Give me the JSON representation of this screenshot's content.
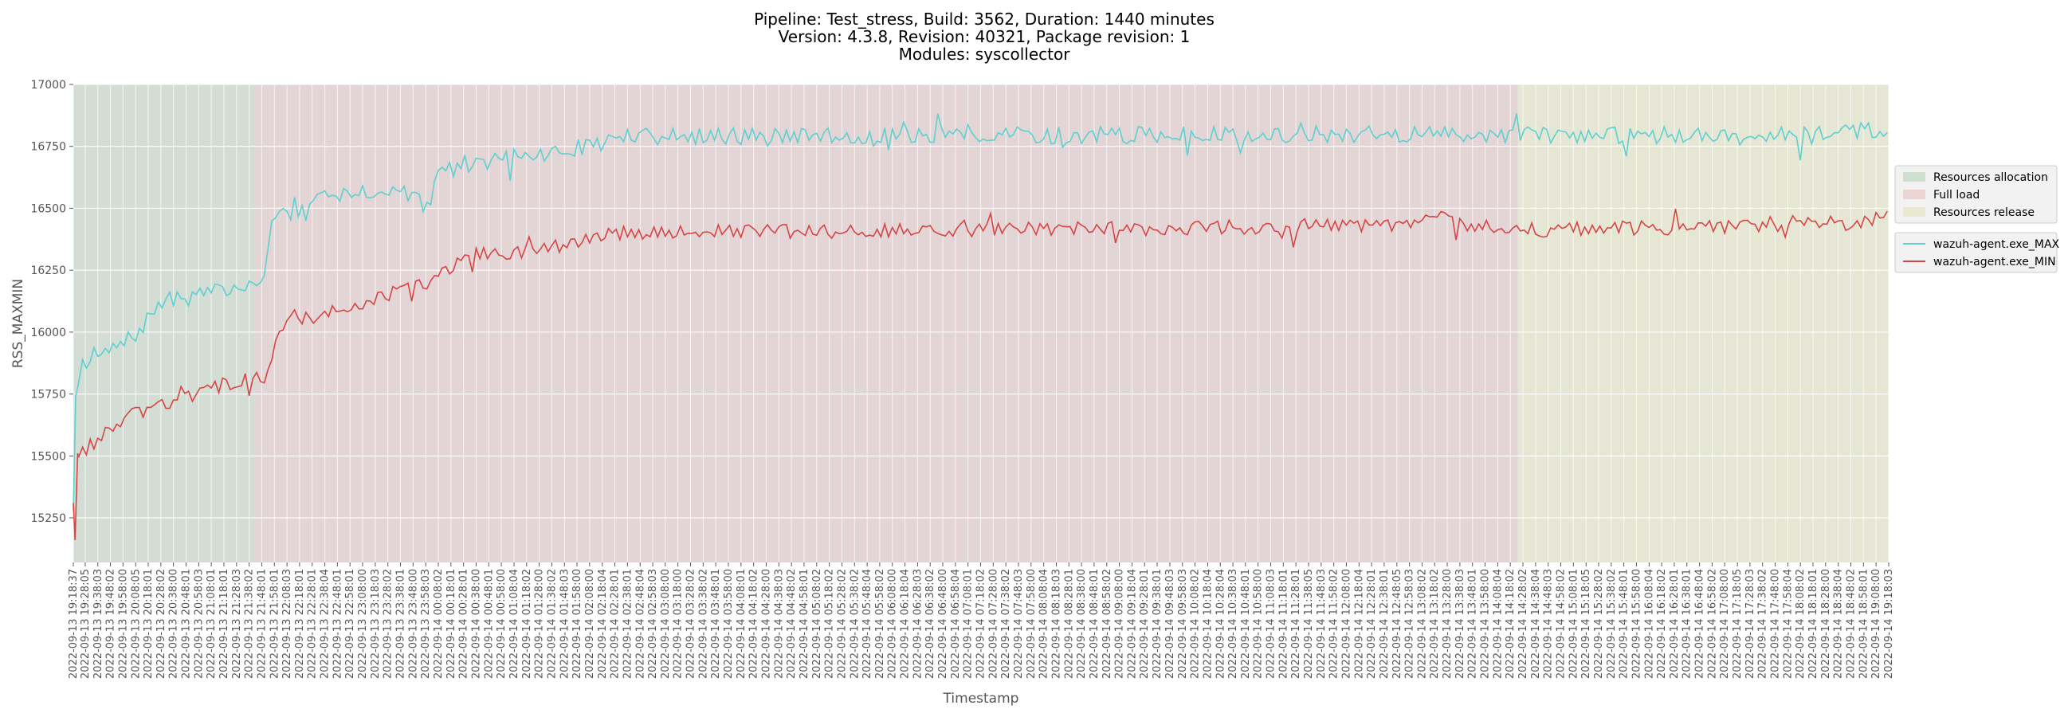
{
  "chart_data": {
    "type": "line",
    "title_lines": [
      "Pipeline: Test_stress, Build: 3562, Duration: 1440 minutes",
      "Version: 4.3.8, Revision: 40321, Package revision: 1",
      "Modules: syscollector"
    ],
    "xlabel": "Timestamp",
    "ylabel": "RSS_MAXMIN",
    "ylim": [
      15070,
      17000
    ],
    "yticks": [
      15250,
      15500,
      15750,
      16000,
      16250,
      16500,
      16750,
      17000
    ],
    "grid": true,
    "legend_position": "right",
    "x_start": "2022-09-13 19:18:37",
    "x_end": "2022-09-14 19:18:03",
    "x_ticks": [
      "2022-09-13 19:18:37",
      "2022-09-13 19:28:05",
      "2022-09-13 19:38:03",
      "2022-09-13 19:48:02",
      "2022-09-13 19:58:00",
      "2022-09-13 20:08:05",
      "2022-09-13 20:18:01",
      "2022-09-13 20:28:02",
      "2022-09-13 20:38:00",
      "2022-09-13 20:48:01",
      "2022-09-13 20:58:03",
      "2022-09-13 21:08:01",
      "2022-09-13 21:18:01",
      "2022-09-13 21:28:03",
      "2022-09-13 21:38:02",
      "2022-09-13 21:48:01",
      "2022-09-13 21:58:01",
      "2022-09-13 22:08:03",
      "2022-09-13 22:18:01",
      "2022-09-13 22:28:01",
      "2022-09-13 22:38:04",
      "2022-09-13 22:48:01",
      "2022-09-13 22:58:01",
      "2022-09-13 23:08:00",
      "2022-09-13 23:18:03",
      "2022-09-13 23:28:02",
      "2022-09-13 23:38:01",
      "2022-09-13 23:48:00",
      "2022-09-13 23:58:03",
      "2022-09-14 00:08:02",
      "2022-09-14 00:18:01",
      "2022-09-14 00:28:01",
      "2022-09-14 00:38:00",
      "2022-09-14 00:48:01",
      "2022-09-14 00:58:00",
      "2022-09-14 01:08:04",
      "2022-09-14 01:18:02",
      "2022-09-14 01:28:00",
      "2022-09-14 01:38:02",
      "2022-09-14 01:48:03",
      "2022-09-14 01:58:00",
      "2022-09-14 02:08:00",
      "2022-09-14 02:18:04",
      "2022-09-14 02:28:01",
      "2022-09-14 02:38:01",
      "2022-09-14 02:48:04",
      "2022-09-14 02:58:03",
      "2022-09-14 03:08:00",
      "2022-09-14 03:18:00",
      "2022-09-14 03:28:02",
      "2022-09-14 03:38:02",
      "2022-09-14 03:48:01",
      "2022-09-14 03:58:00",
      "2022-09-14 04:08:01",
      "2022-09-14 04:18:02",
      "2022-09-14 04:28:00",
      "2022-09-14 04:38:03",
      "2022-09-14 04:48:02",
      "2022-09-14 04:58:01",
      "2022-09-14 05:08:02",
      "2022-09-14 05:18:02",
      "2022-09-14 05:28:02",
      "2022-09-14 05:38:02",
      "2022-09-14 05:48:04",
      "2022-09-14 05:58:02",
      "2022-09-14 06:08:00",
      "2022-09-14 06:18:04",
      "2022-09-14 06:28:03",
      "2022-09-14 06:38:02",
      "2022-09-14 06:48:00",
      "2022-09-14 06:58:04",
      "2022-09-14 07:08:01",
      "2022-09-14 07:18:02",
      "2022-09-14 07:28:00",
      "2022-09-14 07:38:02",
      "2022-09-14 07:48:03",
      "2022-09-14 07:58:00",
      "2022-09-14 08:08:04",
      "2022-09-14 08:18:03",
      "2022-09-14 08:28:01",
      "2022-09-14 08:38:00",
      "2022-09-14 08:48:01",
      "2022-09-14 08:58:02",
      "2022-09-14 09:08:00",
      "2022-09-14 09:18:04",
      "2022-09-14 09:28:01",
      "2022-09-14 09:38:01",
      "2022-09-14 09:48:03",
      "2022-09-14 09:58:03",
      "2022-09-14 10:08:02",
      "2022-09-14 10:18:04",
      "2022-09-14 10:28:04",
      "2022-09-14 10:38:03",
      "2022-09-14 10:48:01",
      "2022-09-14 10:58:00",
      "2022-09-14 11:08:03",
      "2022-09-14 11:18:01",
      "2022-09-14 11:28:01",
      "2022-09-14 11:38:05",
      "2022-09-14 11:48:03",
      "2022-09-14 11:58:02",
      "2022-09-14 12:08:00",
      "2022-09-14 12:18:04",
      "2022-09-14 12:28:01",
      "2022-09-14 12:38:01",
      "2022-09-14 12:48:05",
      "2022-09-14 12:58:03",
      "2022-09-14 13:08:02",
      "2022-09-14 13:18:02",
      "2022-09-14 13:28:00",
      "2022-09-14 13:38:03",
      "2022-09-14 13:48:01",
      "2022-09-14 13:58:00",
      "2022-09-14 14:08:04",
      "2022-09-14 14:18:02",
      "2022-09-14 14:28:02",
      "2022-09-14 14:38:04",
      "2022-09-14 14:48:03",
      "2022-09-14 14:58:02",
      "2022-09-14 15:08:01",
      "2022-09-14 15:18:05",
      "2022-09-14 15:28:02",
      "2022-09-14 15:38:02",
      "2022-09-14 15:48:01",
      "2022-09-14 15:58:00",
      "2022-09-14 16:08:04",
      "2022-09-14 16:18:02",
      "2022-09-14 16:28:01",
      "2022-09-14 16:38:01",
      "2022-09-14 16:48:04",
      "2022-09-14 16:58:02",
      "2022-09-14 17:08:00",
      "2022-09-14 17:18:05",
      "2022-09-14 17:28:03",
      "2022-09-14 17:38:02",
      "2022-09-14 17:48:00",
      "2022-09-14 17:58:04",
      "2022-09-14 18:08:02",
      "2022-09-14 18:18:01",
      "2022-09-14 18:28:00",
      "2022-09-14 18:38:04",
      "2022-09-14 18:48:02",
      "2022-09-14 18:58:01",
      "2022-09-14 19:08:00",
      "2022-09-14 19:18:03"
    ],
    "regions": [
      {
        "label": "Resources allocation",
        "start": "2022-09-13 19:18:37",
        "end": "2022-09-13 21:43:00",
        "color": "#8fbc8f",
        "opacity": 0.2
      },
      {
        "label": "Full load",
        "start": "2022-09-13 21:43:00",
        "end": "2022-09-14 14:24:00",
        "color": "#e0a0a0",
        "opacity": 0.22
      },
      {
        "label": "Resources release",
        "start": "2022-09-14 14:24:00",
        "end": "2022-09-14 19:18:03",
        "color": "#e6e6c8",
        "opacity": 0.6
      }
    ],
    "series": [
      {
        "name": "wazuh-agent.exe_MAX",
        "color": "#5dd0d0",
        "shape": "max"
      },
      {
        "name": "wazuh-agent.exe_MIN",
        "color": "#d64545",
        "shape": "min"
      }
    ],
    "max_control_points": [
      [
        "2022-09-13 19:18:37",
        15280
      ],
      [
        "2022-09-13 19:20:30",
        15740
      ],
      [
        "2022-09-13 19:25:00",
        15880
      ],
      [
        "2022-09-13 19:38:03",
        15900
      ],
      [
        "2022-09-13 19:58:00",
        15950
      ],
      [
        "2022-09-13 20:10:00",
        16000
      ],
      [
        "2022-09-13 20:28:02",
        16120
      ],
      [
        "2022-09-13 21:08:01",
        16160
      ],
      [
        "2022-09-13 21:38:02",
        16180
      ],
      [
        "2022-09-13 21:48:01",
        16200
      ],
      [
        "2022-09-13 21:58:01",
        16480
      ],
      [
        "2022-09-13 22:28:01",
        16490
      ],
      [
        "2022-09-13 22:38:04",
        16580
      ],
      [
        "2022-09-13 23:58:03",
        16560
      ],
      [
        "2022-09-14 00:08:02",
        16650
      ],
      [
        "2022-09-14 00:58:00",
        16700
      ],
      [
        "2022-09-14 01:38:02",
        16720
      ],
      [
        "2022-09-14 02:38:01",
        16790
      ],
      [
        "2022-09-14 14:18:02",
        16800
      ],
      [
        "2022-09-14 17:38:02",
        16790
      ],
      [
        "2022-09-14 19:18:03",
        16820
      ]
    ],
    "min_control_points": [
      [
        "2022-09-13 19:18:37",
        15310
      ],
      [
        "2022-09-13 19:20:00",
        15160
      ],
      [
        "2022-09-13 19:22:00",
        15510
      ],
      [
        "2022-09-13 19:38:03",
        15560
      ],
      [
        "2022-09-13 19:58:00",
        15650
      ],
      [
        "2022-09-13 20:28:02",
        15700
      ],
      [
        "2022-09-13 21:08:01",
        15770
      ],
      [
        "2022-09-13 21:38:02",
        15820
      ],
      [
        "2022-09-13 21:48:01",
        15820
      ],
      [
        "2022-09-13 22:08:03",
        16040
      ],
      [
        "2022-09-13 22:58:01",
        16100
      ],
      [
        "2022-09-13 23:58:03",
        16200
      ],
      [
        "2022-09-14 00:38:00",
        16310
      ],
      [
        "2022-09-14 01:38:02",
        16340
      ],
      [
        "2022-09-14 02:28:01",
        16400
      ],
      [
        "2022-09-14 12:58:03",
        16430
      ],
      [
        "2022-09-14 13:08:02",
        16470
      ],
      [
        "2022-09-14 14:18:02",
        16410
      ],
      [
        "2022-09-14 17:58:04",
        16430
      ],
      [
        "2022-09-14 19:18:03",
        16460
      ]
    ],
    "legend_regions": [
      "Resources allocation",
      "Full load",
      "Resources release"
    ],
    "legend_series": [
      "wazuh-agent.exe_MAX",
      "wazuh-agent.exe_MIN"
    ]
  }
}
